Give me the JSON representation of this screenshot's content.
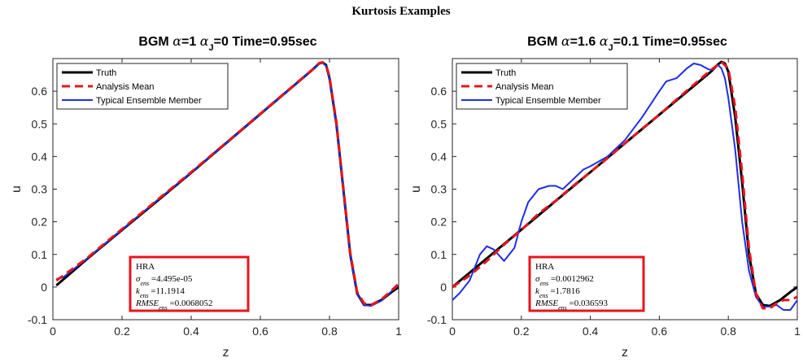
{
  "figure": {
    "title": "Kurtosis Examples"
  },
  "chart_data": [
    {
      "type": "line",
      "title": "BGM α=1 α_J=0 Time=0.95sec",
      "title_parts": {
        "pre": "BGM ",
        "alpha_sym": "α",
        "alpha_val": "=1 ",
        "alphaJ_sym": "α",
        "alphaJ_sub": "J",
        "alphaJ_val": "=0 Time=0.95sec"
      },
      "xlabel": "z",
      "ylabel": "u",
      "xlim": [
        0,
        1
      ],
      "ylim": [
        -0.1,
        0.7
      ],
      "xticks": [
        "0",
        "0.2",
        "0.4",
        "0.6",
        "0.8",
        "1"
      ],
      "yticks": [
        "-0.1",
        "0",
        "0.1",
        "0.2",
        "0.3",
        "0.4",
        "0.5",
        "0.6"
      ],
      "legend_position": "top-left",
      "legend": [
        "Truth",
        "Analysis Mean",
        "Typical Ensemble Member"
      ],
      "series": [
        {
          "name": "Truth",
          "color": "#000000",
          "style": "solid",
          "x": [
            0.01,
            0.1,
            0.2,
            0.3,
            0.4,
            0.5,
            0.6,
            0.7,
            0.75,
            0.77,
            0.78,
            0.79,
            0.8,
            0.82,
            0.84,
            0.86,
            0.88,
            0.9,
            0.92,
            0.95,
            0.98,
            1.0
          ],
          "y": [
            0.005,
            0.087,
            0.175,
            0.262,
            0.35,
            0.44,
            0.53,
            0.62,
            0.665,
            0.685,
            0.688,
            0.68,
            0.64,
            0.5,
            0.3,
            0.1,
            -0.02,
            -0.055,
            -0.055,
            -0.04,
            -0.015,
            0.0
          ]
        },
        {
          "name": "Analysis Mean",
          "color": "#e8141c",
          "style": "dashed",
          "x": [
            0.01,
            0.03,
            0.1,
            0.2,
            0.3,
            0.4,
            0.5,
            0.6,
            0.7,
            0.75,
            0.77,
            0.78,
            0.79,
            0.8,
            0.82,
            0.84,
            0.86,
            0.88,
            0.9,
            0.92,
            0.95,
            0.98,
            1.0
          ],
          "y": [
            0.02,
            0.035,
            0.09,
            0.178,
            0.265,
            0.352,
            0.441,
            0.531,
            0.621,
            0.666,
            0.686,
            0.689,
            0.681,
            0.645,
            0.505,
            0.305,
            0.105,
            -0.015,
            -0.05,
            -0.055,
            -0.038,
            -0.01,
            0.01
          ]
        },
        {
          "name": "Typical Ensemble Member",
          "color": "#1f2ee6",
          "style": "solid",
          "x": [
            0.01,
            0.03,
            0.1,
            0.2,
            0.3,
            0.4,
            0.5,
            0.6,
            0.7,
            0.75,
            0.77,
            0.78,
            0.79,
            0.8,
            0.82,
            0.84,
            0.86,
            0.88,
            0.9,
            0.92,
            0.95,
            0.98,
            1.0
          ],
          "y": [
            0.025,
            0.03,
            0.088,
            0.176,
            0.264,
            0.351,
            0.44,
            0.53,
            0.62,
            0.665,
            0.684,
            0.686,
            0.678,
            0.64,
            0.5,
            0.3,
            0.1,
            -0.02,
            -0.055,
            -0.058,
            -0.042,
            -0.012,
            0.005
          ]
        }
      ],
      "annotation": {
        "label": "HRA",
        "sigma_sym": "σ",
        "sigma_sub": "ens",
        "sigma_val": " =4.495e-05",
        "kappa_sym": "k",
        "kappa_sub": "ens",
        "kappa_val": " =11.1914",
        "rmse_sym": "RMSE",
        "rmse_sub": "ens",
        "rmse_val": " =0.0068052",
        "border_color": "#e8141c"
      }
    },
    {
      "type": "line",
      "title": "BGM α=1.6 α_J=0.1 Time=0.95sec",
      "title_parts": {
        "pre": "BGM ",
        "alpha_sym": "α",
        "alpha_val": "=1.6 ",
        "alphaJ_sym": "α",
        "alphaJ_sub": "J",
        "alphaJ_val": "=0.1 Time=0.95sec"
      },
      "xlabel": "z",
      "ylabel": "u",
      "xlim": [
        0,
        1
      ],
      "ylim": [
        -0.1,
        0.7
      ],
      "xticks": [
        "0",
        "0.2",
        "0.4",
        "0.6",
        "0.8",
        "1"
      ],
      "yticks": [
        "-0.1",
        "0",
        "0.1",
        "0.2",
        "0.3",
        "0.4",
        "0.5",
        "0.6"
      ],
      "legend_position": "top-left",
      "legend": [
        "Truth",
        "Analysis Mean",
        "Typical Ensemble Member"
      ],
      "series": [
        {
          "name": "Truth",
          "color": "#000000",
          "style": "solid",
          "x": [
            0.0,
            0.1,
            0.2,
            0.3,
            0.4,
            0.5,
            0.6,
            0.7,
            0.75,
            0.77,
            0.78,
            0.79,
            0.8,
            0.82,
            0.84,
            0.86,
            0.88,
            0.9,
            0.92,
            0.95,
            0.98,
            1.0
          ],
          "y": [
            0.0,
            0.088,
            0.176,
            0.264,
            0.352,
            0.44,
            0.528,
            0.616,
            0.66,
            0.682,
            0.69,
            0.685,
            0.66,
            0.52,
            0.32,
            0.1,
            -0.02,
            -0.055,
            -0.058,
            -0.04,
            -0.015,
            0.0
          ]
        },
        {
          "name": "Analysis Mean",
          "color": "#e8141c",
          "style": "dashed",
          "x": [
            0.0,
            0.05,
            0.1,
            0.15,
            0.2,
            0.25,
            0.3,
            0.35,
            0.4,
            0.45,
            0.5,
            0.55,
            0.6,
            0.65,
            0.7,
            0.75,
            0.78,
            0.8,
            0.82,
            0.84,
            0.86,
            0.88,
            0.9,
            0.92,
            0.94,
            0.96,
            0.98,
            1.0
          ],
          "y": [
            0.0,
            0.035,
            0.08,
            0.13,
            0.175,
            0.225,
            0.265,
            0.31,
            0.352,
            0.395,
            0.44,
            0.485,
            0.528,
            0.575,
            0.62,
            0.665,
            0.69,
            0.67,
            0.55,
            0.35,
            0.12,
            -0.02,
            -0.065,
            -0.065,
            -0.05,
            -0.04,
            -0.04,
            -0.03
          ]
        },
        {
          "name": "Typical Ensemble Member",
          "color": "#1f2ee6",
          "style": "solid",
          "x": [
            0.0,
            0.02,
            0.05,
            0.08,
            0.1,
            0.12,
            0.15,
            0.18,
            0.2,
            0.22,
            0.25,
            0.28,
            0.3,
            0.32,
            0.35,
            0.38,
            0.4,
            0.45,
            0.5,
            0.55,
            0.6,
            0.62,
            0.65,
            0.68,
            0.7,
            0.72,
            0.74,
            0.75,
            0.76,
            0.77,
            0.78,
            0.79,
            0.8,
            0.82,
            0.84,
            0.86,
            0.88,
            0.9,
            0.92,
            0.94,
            0.96,
            0.98,
            1.0
          ],
          "y": [
            -0.04,
            -0.02,
            0.02,
            0.1,
            0.125,
            0.115,
            0.08,
            0.12,
            0.2,
            0.26,
            0.3,
            0.31,
            0.31,
            0.3,
            0.33,
            0.36,
            0.37,
            0.4,
            0.45,
            0.52,
            0.6,
            0.63,
            0.64,
            0.67,
            0.685,
            0.68,
            0.668,
            0.665,
            0.67,
            0.68,
            0.67,
            0.64,
            0.58,
            0.42,
            0.2,
            0.05,
            -0.03,
            -0.06,
            -0.06,
            -0.055,
            -0.07,
            -0.07,
            -0.04
          ]
        }
      ],
      "annotation": {
        "label": "HRA",
        "sigma_sym": "σ",
        "sigma_sub": "ens",
        "sigma_val": " =0.0012962",
        "kappa_sym": "k",
        "kappa_sub": "ens",
        "kappa_val": " =1.7816",
        "rmse_sym": "RMSE",
        "rmse_sub": "ens",
        "rmse_val": " =0.036593",
        "border_color": "#e8141c"
      }
    }
  ]
}
